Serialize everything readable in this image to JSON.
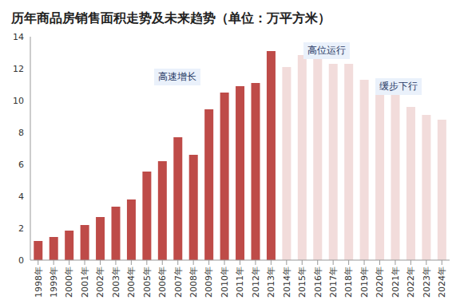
{
  "chart_data": {
    "type": "bar",
    "title": "历年商品房销售面积走势及未来趋势（单位：万平方米）",
    "categories": [
      "1998年",
      "1999年",
      "2000年",
      "2001年",
      "2002年",
      "2003年",
      "2004年",
      "2005年",
      "2006年",
      "2007年",
      "2008年",
      "2009年",
      "2010年",
      "2011年",
      "2012年",
      "2013年",
      "2014年",
      "2015年",
      "2016年",
      "2017年",
      "2018年",
      "2019年",
      "2020年",
      "2021年",
      "2022年",
      "2023年",
      "2024年"
    ],
    "values": [
      1.2,
      1.45,
      1.85,
      2.2,
      2.7,
      3.35,
      3.8,
      5.55,
      6.2,
      7.7,
      6.6,
      9.45,
      10.5,
      10.9,
      11.1,
      13.1,
      12.1,
      12.85,
      12.7,
      12.3,
      12.3,
      11.3,
      11.1,
      10.4,
      9.6,
      9.1,
      8.8
    ],
    "colors": [
      "#be4b48",
      "#be4b48",
      "#be4b48",
      "#be4b48",
      "#be4b48",
      "#be4b48",
      "#be4b48",
      "#be4b48",
      "#be4b48",
      "#be4b48",
      "#be4b48",
      "#be4b48",
      "#be4b48",
      "#be4b48",
      "#be4b48",
      "#be4b48",
      "#f2dcdb",
      "#f2dcdb",
      "#f2dcdb",
      "#f2dcdb",
      "#f2dcdb",
      "#f2dcdb",
      "#f2dcdb",
      "#f2dcdb",
      "#f2dcdb",
      "#f2dcdb",
      "#f2dcdb"
    ],
    "ylim": [
      0,
      14
    ],
    "yticks": [
      0,
      2,
      4,
      6,
      8,
      10,
      12,
      14
    ],
    "grid": false,
    "annotations": [
      "高速增长",
      "高位运行",
      "缓步下行"
    ]
  }
}
